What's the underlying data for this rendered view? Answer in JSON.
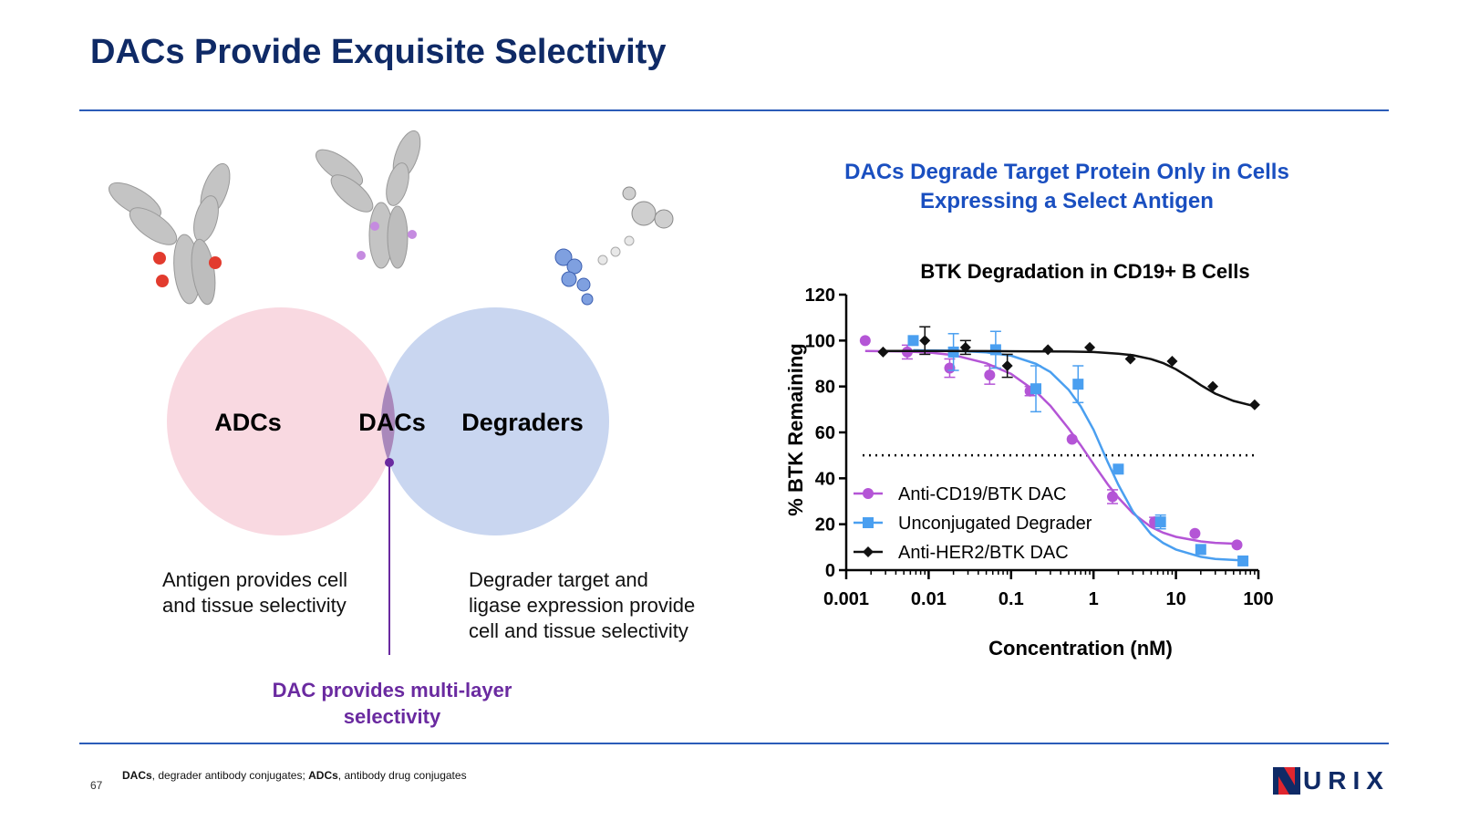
{
  "slide": {
    "title": "DACs Provide Exquisite Selectivity",
    "page_number": "67"
  },
  "venn": {
    "left_label": "ADCs",
    "center_label": "DACs",
    "right_label": "Degraders",
    "left_caption": "Antigen provides cell and tissue selectivity",
    "right_caption": "Degrader target and ligase expression provide cell and tissue selectivity",
    "center_caption": "DAC provides multi-layer selectivity",
    "colors": {
      "left": "#f9d9e1",
      "right": "#c9d6f0",
      "overlap": "#a988bb",
      "accent": "#6a2aa0"
    }
  },
  "chart_heading": "DACs Degrade Target Protein Only in Cells Expressing a Select Antigen",
  "chart_data": {
    "type": "scatter",
    "title": "BTK Degradation in CD19+ B Cells",
    "xlabel": "Concentration  (nM)",
    "ylabel": "% BTK Remaining",
    "x_scale": "log",
    "xlim": [
      0.001,
      100
    ],
    "ylim": [
      0,
      120
    ],
    "x_ticks": [
      0.001,
      0.01,
      0.1,
      1,
      10,
      100
    ],
    "x_tick_labels": [
      "0.001",
      "0.01",
      "0.1",
      "1",
      "10",
      "100"
    ],
    "y_ticks": [
      0,
      20,
      40,
      60,
      80,
      100,
      120
    ],
    "y_tick_labels": [
      "0",
      "20",
      "40",
      "60",
      "80",
      "100",
      "120"
    ],
    "reference_line": {
      "y": 50,
      "style": "dotted"
    },
    "legend_position": "bottom-left",
    "grid": false,
    "series": [
      {
        "name": "Anti-CD19/BTK  DAC",
        "color": "#b455d6",
        "marker": "circle",
        "x": [
          0.0017,
          0.0055,
          0.018,
          0.055,
          0.17,
          0.55,
          1.7,
          5.5,
          17,
          55
        ],
        "y": [
          100,
          95,
          88,
          85,
          78,
          57,
          32,
          21,
          16,
          11
        ],
        "err": [
          0,
          3,
          4,
          4,
          2,
          0,
          3,
          2,
          0,
          0
        ],
        "fit_x": [
          0.0017,
          0.005,
          0.01,
          0.02,
          0.05,
          0.1,
          0.2,
          0.3,
          0.5,
          0.7,
          1,
          1.5,
          2,
          3,
          5,
          7,
          10,
          20,
          30,
          55
        ],
        "fit_y": [
          95.5,
          95.3,
          94.8,
          93.7,
          90.1,
          85.5,
          77.8,
          71.6,
          61.6,
          54.4,
          46.2,
          37.2,
          31.6,
          24.8,
          18.8,
          16.3,
          14.5,
          12.5,
          11.9,
          11.5
        ]
      },
      {
        "name": "Unconjugated Degrader",
        "color": "#4a9ff0",
        "marker": "square",
        "x": [
          0.0065,
          0.02,
          0.065,
          0.2,
          0.65,
          2,
          6.5,
          20,
          65
        ],
        "y": [
          100,
          95,
          96,
          79,
          81,
          44,
          21,
          9,
          4
        ],
        "err": [
          0,
          8,
          8,
          10,
          8,
          0,
          3,
          0,
          0
        ],
        "fit_x": [
          0.0065,
          0.02,
          0.05,
          0.1,
          0.2,
          0.3,
          0.5,
          0.7,
          1,
          1.5,
          2,
          3,
          5,
          7,
          10,
          20,
          30,
          65
        ],
        "fit_y": [
          95.8,
          95.6,
          94.9,
          93.4,
          89.9,
          86.3,
          78.5,
          71.3,
          61.2,
          46.8,
          37.2,
          25.6,
          15.6,
          11.8,
          9.0,
          5.8,
          4.9,
          4.2
        ]
      },
      {
        "name": "Anti-HER2/BTK DAC",
        "color": "#111111",
        "marker": "diamond",
        "x": [
          0.0028,
          0.009,
          0.028,
          0.09,
          0.28,
          0.9,
          2.8,
          9,
          28,
          90
        ],
        "y": [
          95,
          100,
          97,
          89,
          96,
          97,
          92,
          91,
          80,
          72
        ],
        "err": [
          0,
          6,
          3,
          5,
          0,
          0,
          0,
          0,
          0,
          0
        ],
        "fit_x": [
          0.0028,
          0.01,
          0.05,
          0.2,
          0.5,
          1,
          2,
          3,
          5,
          7,
          10,
          15,
          20,
          30,
          50,
          90
        ],
        "fit_y": [
          95.5,
          95.5,
          95.4,
          95.3,
          95.2,
          95,
          94.3,
          93.6,
          91.9,
          90.2,
          87.5,
          83.6,
          80.6,
          76.9,
          73.7,
          71.4
        ]
      }
    ]
  },
  "footnote": {
    "term1": "DACs",
    "def1": ", degrader antibody conjugates; ",
    "term2": "ADCs",
    "def2": ", antibody drug conjugates"
  },
  "logo": {
    "text": "URIX",
    "initial": "N",
    "colors": {
      "navy": "#0f2a66",
      "red": "#e0262f"
    }
  }
}
